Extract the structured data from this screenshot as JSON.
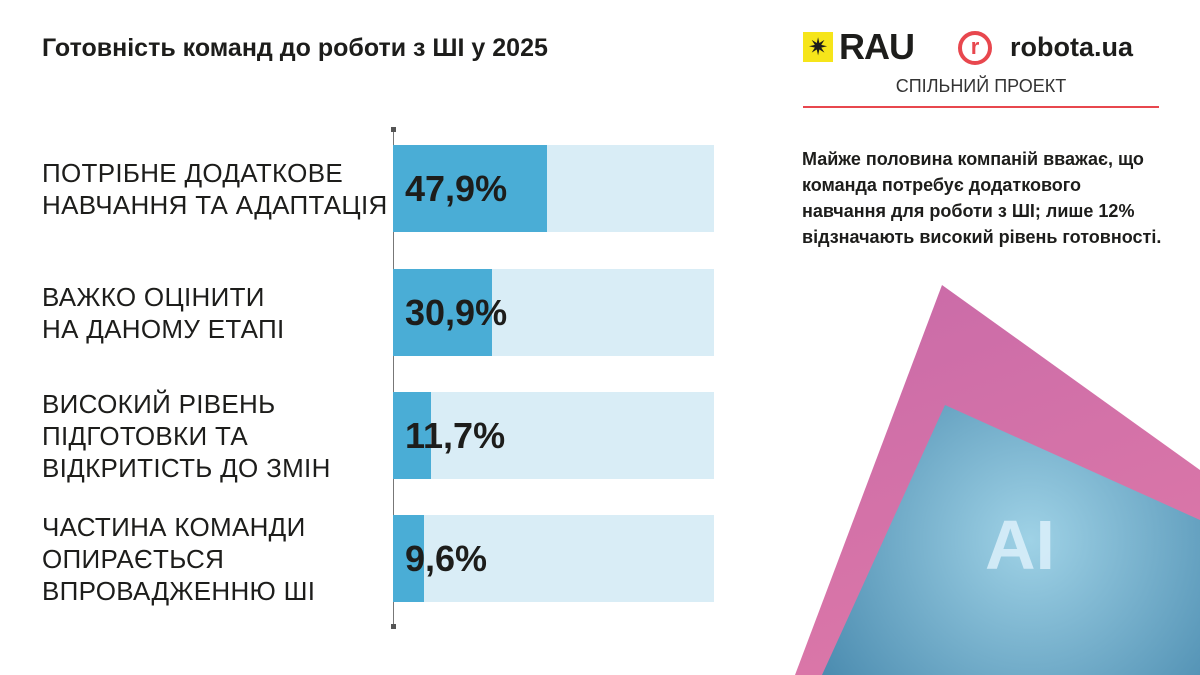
{
  "title": "Готовність команд до роботи з ШІ у 2025",
  "logos": {
    "rau": "RAU",
    "robota": "robota.ua",
    "joint_project": "СПІЛЬНИЙ ПРОЕКТ"
  },
  "description": "Майже половина компаній вважає, що команда потребує додаткового навчання для роботи з ШІ; лише 12% відзначають високий рівень готовності.",
  "image_text": "AI",
  "colors": {
    "bar": "#4aadd6",
    "track": "#d9edf6",
    "accent": "#e8474e"
  },
  "chart_data": {
    "type": "bar",
    "orientation": "horizontal",
    "title": "Готовність команд до роботи з ШІ у 2025",
    "categories": [
      "ПОТРІБНЕ ДОДАТКОВЕ НАВЧАННЯ ТА АДАПТАЦІЯ",
      "ВАЖКО ОЦІНИТИ НА ДАНОМУ ЕТАПІ",
      "ВИСОКИЙ РІВЕНЬ ПІДГОТОВКИ ТА ВІДКРИТІСТЬ ДО ЗМІН",
      "ЧАСТИНА КОМАНДИ ОПИРАЄТЬСЯ ВПРОВАДЖЕННЮ ШІ"
    ],
    "labels_lines": [
      [
        "ПОТРІБНЕ ДОДАТКОВЕ",
        "НАВЧАННЯ ТА АДАПТАЦІЯ"
      ],
      [
        "ВАЖКО ОЦІНИТИ",
        "НА ДАНОМУ ЕТАПІ"
      ],
      [
        "ВИСОКИЙ РІВЕНЬ",
        "ПІДГОТОВКИ ТА",
        "ВІДКРИТІСТЬ ДО ЗМІН"
      ],
      [
        "ЧАСТИНА КОМАНДИ",
        "ОПИРАЄТЬСЯ",
        "ВПРОВАДЖЕННЮ ШІ"
      ]
    ],
    "values": [
      47.9,
      30.9,
      11.7,
      9.6
    ],
    "value_labels": [
      "47,9%",
      "30,9%",
      "11,7%",
      "9,6%"
    ],
    "xlim": [
      0,
      100
    ],
    "xlabel": "",
    "ylabel": "",
    "grid": false
  }
}
